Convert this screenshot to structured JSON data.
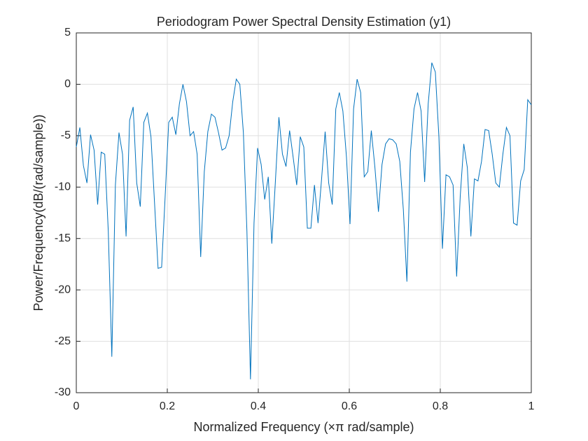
{
  "chart_data": {
    "type": "line",
    "title": "Periodogram Power Spectral Density Estimation (y1)",
    "x_label": "Normalized Frequency  (×π rad/sample)",
    "y_label": "Power/Frequency(dB/(rad/sample))",
    "color": "#0072bd",
    "grid": true,
    "xlim": [
      0,
      1
    ],
    "xticks": [
      0,
      0.2,
      0.4,
      0.6,
      0.8,
      1
    ],
    "ylim": [
      -30,
      5
    ],
    "yticks": [
      -30,
      -25,
      -20,
      -15,
      -10,
      -5,
      0,
      5
    ],
    "x": [
      0,
      0.0078,
      0.0156,
      0.0234,
      0.0313,
      0.0391,
      0.0469,
      0.0547,
      0.0625,
      0.0703,
      0.0781,
      0.0859,
      0.0938,
      0.1016,
      0.1094,
      0.1172,
      0.125,
      0.1328,
      0.1406,
      0.1484,
      0.1563,
      0.1641,
      0.1719,
      0.1797,
      0.1875,
      0.1953,
      0.2031,
      0.2109,
      0.2188,
      0.2266,
      0.2344,
      0.2422,
      0.25,
      0.2578,
      0.2656,
      0.2734,
      0.2813,
      0.2891,
      0.2969,
      0.3047,
      0.3125,
      0.3203,
      0.3281,
      0.3359,
      0.3438,
      0.3516,
      0.3594,
      0.3672,
      0.375,
      0.3828,
      0.3906,
      0.3984,
      0.4063,
      0.4141,
      0.4219,
      0.4297,
      0.4375,
      0.4453,
      0.4531,
      0.4609,
      0.4688,
      0.4766,
      0.4844,
      0.4922,
      0.5,
      0.5078,
      0.5156,
      0.5234,
      0.5313,
      0.5391,
      0.5469,
      0.5547,
      0.5625,
      0.5703,
      0.5781,
      0.5859,
      0.5938,
      0.6016,
      0.6094,
      0.6172,
      0.625,
      0.6328,
      0.6406,
      0.6484,
      0.6563,
      0.6641,
      0.6719,
      0.6797,
      0.6875,
      0.6953,
      0.7031,
      0.7109,
      0.7188,
      0.7266,
      0.7344,
      0.7422,
      0.75,
      0.7578,
      0.7656,
      0.7734,
      0.7813,
      0.7891,
      0.7969,
      0.8047,
      0.8125,
      0.8203,
      0.8281,
      0.8359,
      0.8438,
      0.8516,
      0.8594,
      0.8672,
      0.875,
      0.8828,
      0.8906,
      0.8984,
      0.9063,
      0.9141,
      0.9219,
      0.9297,
      0.9375,
      0.9453,
      0.9531,
      0.9609,
      0.9688,
      0.9766,
      0.9844,
      0.9922,
      1
    ],
    "values": [
      -6.1,
      -4.2,
      -7.9,
      -9.6,
      -4.9,
      -6.4,
      -11.7,
      -6.6,
      -6.8,
      -14.3,
      -26.5,
      -9.8,
      -4.7,
      -6.8,
      -14.8,
      -3.5,
      -2.2,
      -9.6,
      -11.9,
      -3.7,
      -2.8,
      -5.1,
      -11.5,
      -17.9,
      -17.8,
      -10.9,
      -3.7,
      -3.2,
      -4.9,
      -1.9,
      0.0,
      -1.7,
      -5.0,
      -4.6,
      -6.8,
      -16.8,
      -8.5,
      -4.6,
      -2.9,
      -3.2,
      -4.7,
      -6.4,
      -6.2,
      -5.0,
      -1.7,
      0.5,
      0.0,
      -4.7,
      -14.3,
      -28.7,
      -13.5,
      -6.2,
      -7.8,
      -11.2,
      -9.0,
      -15.5,
      -9.5,
      -3.2,
      -6.8,
      -8.0,
      -4.5,
      -7.1,
      -9.8,
      -5.1,
      -6.1,
      -14.0,
      -14.0,
      -9.8,
      -13.5,
      -9.2,
      -4.6,
      -9.6,
      -11.7,
      -2.4,
      -0.8,
      -2.6,
      -7.1,
      -13.6,
      -2.4,
      0.5,
      -0.8,
      -9.0,
      -8.5,
      -4.5,
      -8.1,
      -12.4,
      -7.8,
      -5.8,
      -5.3,
      -5.4,
      -5.8,
      -7.5,
      -12.2,
      -19.2,
      -6.6,
      -2.4,
      -0.8,
      -2.6,
      -9.5,
      -1.9,
      2.1,
      1.2,
      -5.1,
      -16.0,
      -8.8,
      -9.0,
      -9.8,
      -18.7,
      -10.9,
      -5.8,
      -8.1,
      -14.8,
      -9.2,
      -9.4,
      -7.5,
      -4.4,
      -4.5,
      -6.8,
      -9.6,
      -10.0,
      -6.8,
      -4.2,
      -5.0,
      -13.5,
      -13.7,
      -9.4,
      -8.3,
      -1.5,
      -2.0
    ]
  }
}
